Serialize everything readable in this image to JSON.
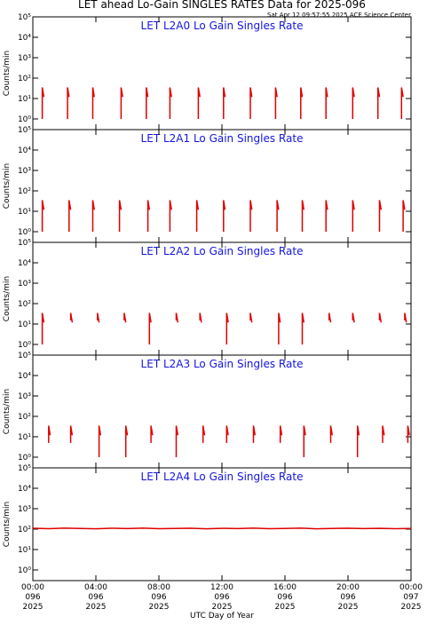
{
  "title": "LET ahead Lo-Gain SINGLES RATES Data for 2025-096",
  "subtitle": "Sat Apr 12 09:57:55 2025 ACE Science Center",
  "chart_data": [
    {
      "type": "line",
      "title": "LET L2A0 Lo Gain Singles Rate",
      "ylabel": "Counts/min",
      "log": true,
      "ylim": [
        0.3,
        100000
      ],
      "xlim": [
        0,
        24
      ],
      "yticks": [
        {
          "value": 1,
          "label": "10⁰"
        },
        {
          "value": 10,
          "label": "10¹"
        },
        {
          "value": 100,
          "label": "10²"
        },
        {
          "value": 1000,
          "label": "10³"
        },
        {
          "value": 10000,
          "label": "10⁴"
        },
        {
          "value": 100000,
          "label": "10⁵"
        }
      ],
      "series": [
        {
          "color": "#e00000",
          "x": [
            0.6,
            0.6,
            0.7,
            0.7,
            2.2,
            2.2,
            2.3,
            2.3,
            3.8,
            3.8,
            3.9,
            3.9,
            5.6,
            5.6,
            5.7,
            5.7,
            7.2,
            7.2,
            7.3,
            7.3,
            8.7,
            8.7,
            8.8,
            8.8,
            10.5,
            10.5,
            10.6,
            10.6,
            12.1,
            12.1,
            12.2,
            12.2,
            13.8,
            13.8,
            13.9,
            13.9,
            15.4,
            15.4,
            15.5,
            15.5,
            17.0,
            17.0,
            17.1,
            17.1,
            18.6,
            18.6,
            18.7,
            18.7,
            20.3,
            20.3,
            20.4,
            20.4,
            21.9,
            21.9,
            22.0,
            22.0,
            23.4,
            23.4,
            23.5
          ],
          "values": [
            1,
            35,
            12,
            null,
            1,
            35,
            12,
            null,
            1,
            35,
            12,
            null,
            1,
            35,
            12,
            null,
            1,
            35,
            12,
            null,
            1,
            35,
            12,
            null,
            1,
            35,
            12,
            null,
            1,
            35,
            12,
            null,
            1,
            35,
            12,
            null,
            1,
            35,
            12,
            null,
            1,
            35,
            12,
            null,
            1,
            35,
            12,
            null,
            1,
            35,
            12,
            null,
            1,
            35,
            12,
            null,
            1,
            35,
            12
          ]
        }
      ]
    },
    {
      "type": "line",
      "title": "LET L2A1 Lo Gain Singles Rate",
      "ylabel": "Counts/min",
      "log": true,
      "ylim": [
        0.3,
        100000
      ],
      "xlim": [
        0,
        24
      ],
      "yticks": [
        {
          "value": 1,
          "label": "10⁰"
        },
        {
          "value": 10,
          "label": "10¹"
        },
        {
          "value": 100,
          "label": "10²"
        },
        {
          "value": 1000,
          "label": "10³"
        },
        {
          "value": 10000,
          "label": "10⁴"
        },
        {
          "value": 100000,
          "label": "10⁵"
        }
      ],
      "series": [
        {
          "color": "#e00000",
          "x": [
            0.6,
            0.6,
            0.7,
            0.7,
            2.3,
            2.3,
            2.4,
            2.4,
            3.8,
            3.8,
            3.9,
            3.9,
            5.5,
            5.5,
            5.6,
            5.6,
            7.3,
            7.3,
            7.4,
            7.4,
            8.7,
            8.7,
            8.8,
            8.8,
            10.4,
            10.4,
            10.5,
            10.5,
            12.1,
            12.1,
            12.2,
            12.2,
            13.8,
            13.8,
            13.9,
            13.9,
            15.5,
            15.5,
            15.6,
            15.6,
            17.1,
            17.1,
            17.2,
            17.2,
            18.6,
            18.6,
            18.7,
            18.7,
            20.3,
            20.3,
            20.4,
            20.4,
            22.0,
            22.0,
            22.1,
            22.1,
            23.5,
            23.5,
            23.6
          ],
          "values": [
            1,
            35,
            12,
            null,
            1,
            35,
            12,
            null,
            1,
            35,
            12,
            null,
            1,
            35,
            12,
            null,
            1,
            35,
            12,
            null,
            1,
            35,
            12,
            null,
            1,
            35,
            12,
            null,
            1,
            35,
            12,
            null,
            1,
            35,
            12,
            null,
            1,
            35,
            12,
            null,
            1,
            35,
            12,
            null,
            1,
            35,
            12,
            null,
            1,
            35,
            12,
            null,
            1,
            35,
            12,
            null,
            1,
            35,
            12
          ]
        }
      ]
    },
    {
      "type": "line",
      "title": "LET L2A2 Lo Gain Singles Rate",
      "ylabel": "Counts/min",
      "log": true,
      "ylim": [
        0.3,
        100000
      ],
      "xlim": [
        0,
        24
      ],
      "yticks": [
        {
          "value": 1,
          "label": "10⁰"
        },
        {
          "value": 10,
          "label": "10¹"
        },
        {
          "value": 100,
          "label": "10²"
        },
        {
          "value": 1000,
          "label": "10³"
        },
        {
          "value": 10000,
          "label": "10⁴"
        },
        {
          "value": 100000,
          "label": "10⁵"
        }
      ],
      "series": [
        {
          "color": "#e00000",
          "x": [
            0.6,
            0.6,
            0.7,
            0.7,
            2.4,
            2.4,
            2.5,
            2.5,
            4.1,
            4.1,
            4.2,
            4.2,
            5.8,
            5.8,
            5.9,
            5.9,
            7.4,
            7.4,
            7.5,
            7.5,
            9.1,
            9.1,
            9.2,
            9.2,
            10.6,
            10.6,
            10.7,
            10.7,
            12.3,
            12.3,
            12.4,
            12.4,
            13.8,
            13.8,
            13.9,
            13.9,
            15.6,
            15.6,
            15.7,
            15.7,
            17.1,
            17.1,
            17.2,
            17.2,
            18.8,
            18.8,
            18.9,
            18.9,
            20.3,
            20.3,
            20.4,
            20.4,
            22.0,
            22.0,
            22.1,
            22.1,
            23.6,
            23.6,
            23.7
          ],
          "values": [
            1,
            35,
            12,
            null,
            15,
            35,
            12,
            null,
            15,
            35,
            12,
            null,
            15,
            35,
            12,
            null,
            1,
            35,
            12,
            null,
            15,
            35,
            12,
            null,
            15,
            35,
            12,
            null,
            1,
            35,
            12,
            null,
            15,
            35,
            12,
            null,
            1,
            35,
            12,
            null,
            1,
            35,
            12,
            null,
            15,
            35,
            12,
            null,
            15,
            35,
            12,
            null,
            15,
            35,
            12,
            null,
            15,
            35,
            12
          ]
        }
      ]
    },
    {
      "type": "line",
      "title": "LET L2A3 Lo Gain Singles Rate",
      "ylabel": "Counts/min",
      "log": true,
      "ylim": [
        0.3,
        100000
      ],
      "xlim": [
        0,
        24
      ],
      "yticks": [
        {
          "value": 1,
          "label": "10⁰"
        },
        {
          "value": 10,
          "label": "10¹"
        },
        {
          "value": 100,
          "label": "10²"
        },
        {
          "value": 1000,
          "label": "10³"
        },
        {
          "value": 10000,
          "label": "10⁴"
        },
        {
          "value": 100000,
          "label": "10⁵"
        }
      ],
      "series": [
        {
          "color": "#e00000",
          "x": [
            1.0,
            1.0,
            1.1,
            1.1,
            2.4,
            2.4,
            2.5,
            2.5,
            4.2,
            4.2,
            4.3,
            4.3,
            5.9,
            5.9,
            6.0,
            6.0,
            7.5,
            7.5,
            7.6,
            7.6,
            9.1,
            9.1,
            9.2,
            9.2,
            10.8,
            10.8,
            10.9,
            10.9,
            12.3,
            12.3,
            12.4,
            12.4,
            14.0,
            14.0,
            14.1,
            14.1,
            15.7,
            15.7,
            15.8,
            15.8,
            17.2,
            17.2,
            17.3,
            17.3,
            18.9,
            18.9,
            19.0,
            19.0,
            20.6,
            20.6,
            20.7,
            20.7,
            22.2,
            22.2,
            22.3,
            22.3,
            23.8,
            23.8,
            23.9
          ],
          "values": [
            5,
            35,
            12,
            null,
            5,
            35,
            12,
            null,
            1,
            35,
            12,
            null,
            1,
            35,
            12,
            null,
            5,
            35,
            12,
            null,
            1,
            35,
            12,
            null,
            5,
            35,
            12,
            null,
            5,
            35,
            12,
            null,
            5,
            35,
            12,
            null,
            5,
            35,
            12,
            null,
            1,
            35,
            12,
            null,
            5,
            35,
            12,
            null,
            1,
            35,
            12,
            null,
            5,
            35,
            12,
            null,
            5,
            35,
            12
          ]
        }
      ]
    },
    {
      "type": "line",
      "title": "LET L2A4 Lo Gain Singles Rate",
      "ylabel": "Counts/min",
      "log": true,
      "ylim": [
        0.3,
        100000
      ],
      "xlim": [
        0,
        24
      ],
      "xlabel": "UTC Day of Year",
      "yticks": [
        {
          "value": 1,
          "label": "10⁰"
        },
        {
          "value": 10,
          "label": "10¹"
        },
        {
          "value": 100,
          "label": "10²"
        },
        {
          "value": 1000,
          "label": "10³"
        },
        {
          "value": 10000,
          "label": "10⁴"
        },
        {
          "value": 100000,
          "label": "10⁵"
        }
      ],
      "xticks": [
        {
          "value": 0,
          "label": [
            "00:00",
            "096",
            "2025"
          ]
        },
        {
          "value": 4,
          "label": [
            "04:00",
            "096",
            "2025"
          ]
        },
        {
          "value": 8,
          "label": [
            "08:00",
            "096",
            "2025"
          ]
        },
        {
          "value": 12,
          "label": [
            "12:00",
            "096",
            "2025"
          ]
        },
        {
          "value": 16,
          "label": [
            "16:00",
            "096",
            "2025"
          ]
        },
        {
          "value": 20,
          "label": [
            "20:00",
            "096",
            "2025"
          ]
        },
        {
          "value": 24,
          "label": [
            "00:00",
            "097",
            "2025"
          ]
        }
      ],
      "series": [
        {
          "color": "#e00000",
          "x": [
            0,
            1,
            2,
            3,
            4,
            5,
            6,
            7,
            8,
            9,
            10,
            11,
            12,
            13,
            14,
            15,
            16,
            17,
            18,
            19,
            20,
            21,
            22,
            23,
            24
          ],
          "values": [
            110,
            105,
            112,
            108,
            104,
            110,
            106,
            112,
            105,
            108,
            110,
            104,
            109,
            106,
            111,
            105,
            108,
            112,
            104,
            107,
            110,
            106,
            109,
            105,
            108
          ]
        }
      ]
    }
  ]
}
